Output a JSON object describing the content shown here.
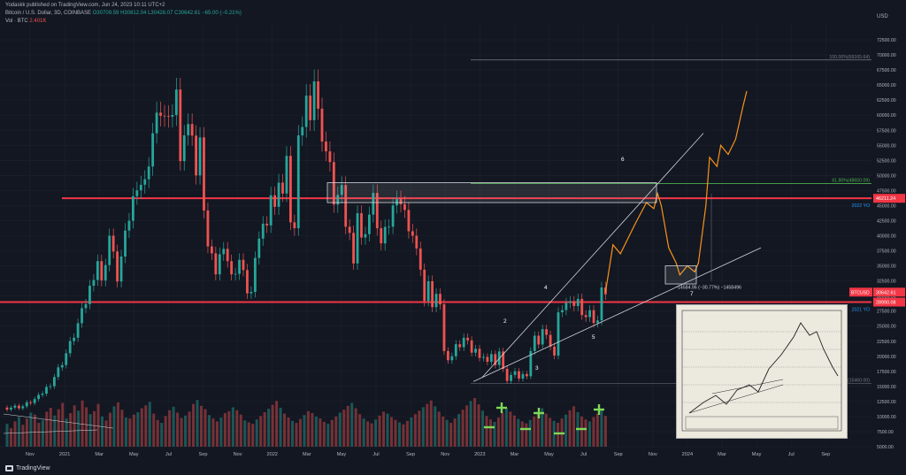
{
  "header": {
    "publisher": "Yodaskk published on TradingView.com, Jun 24, 2023 10:11 UTC+2",
    "symbol": "Bitcoin / U.S. Dollar, 3D, COINBASE",
    "ohlc": "O30709.59 H30812.04 L30426.07 C30642.61 −65.00 (−0.21%)",
    "vol_label": "Vol · BTC",
    "vol_value": "2.401K"
  },
  "branding": "TradingView",
  "chart_data": {
    "type": "candlestick",
    "currency_label": "USD",
    "x_tick_labels": [
      "Nov",
      "2021",
      "Mar",
      "May",
      "Jul",
      "Sep",
      "Nov",
      "2022",
      "Mar",
      "May",
      "Jul",
      "Sep",
      "Nov",
      "2023",
      "Mar",
      "May",
      "Jul",
      "Sep",
      "Nov",
      "2024",
      "Mar",
      "May",
      "Jul",
      "Sep"
    ],
    "y_tick_labels": [
      "72500.00",
      "70000.00",
      "67500.00",
      "65000.00",
      "62500.00",
      "60000.00",
      "57500.00",
      "55000.00",
      "52500.00",
      "50000.00",
      "47500.00",
      "45000.00",
      "42500.00",
      "40000.00",
      "37500.00",
      "35000.00",
      "32500.00",
      "30000.00",
      "27500.00",
      "25000.00",
      "22500.00",
      "20000.00",
      "17500.00",
      "15000.00",
      "12500.00",
      "10000.00",
      "7500.00",
      "5000.00"
    ],
    "ylim": [
      5000,
      75000
    ],
    "price_path": [
      [
        0,
        11500
      ],
      [
        4,
        11700
      ],
      [
        8,
        13200
      ],
      [
        11,
        15500
      ],
      [
        14,
        19000
      ],
      [
        17,
        23500
      ],
      [
        20,
        29000
      ],
      [
        23,
        36000
      ],
      [
        24,
        32000
      ],
      [
        26,
        40000
      ],
      [
        28,
        33000
      ],
      [
        31,
        43000
      ],
      [
        33,
        49000
      ],
      [
        35,
        48500
      ],
      [
        37,
        57000
      ],
      [
        39,
        61000
      ],
      [
        41,
        58000
      ],
      [
        43,
        63500
      ],
      [
        44,
        54000
      ],
      [
        45,
        57000
      ],
      [
        47,
        58000
      ],
      [
        48,
        50000
      ],
      [
        49,
        55000
      ],
      [
        50,
        45000
      ],
      [
        51,
        38000
      ],
      [
        53,
        34000
      ],
      [
        55,
        39000
      ],
      [
        57,
        33000
      ],
      [
        59,
        36000
      ],
      [
        61,
        31000
      ],
      [
        62,
        30500
      ],
      [
        64,
        40000
      ],
      [
        66,
        43000
      ],
      [
        67,
        47000
      ],
      [
        68,
        44000
      ],
      [
        69,
        50000
      ],
      [
        70,
        47000
      ],
      [
        71,
        52000
      ],
      [
        72,
        43000
      ],
      [
        73,
        41000
      ],
      [
        74,
        55000
      ],
      [
        76,
        62500
      ],
      [
        77,
        61000
      ],
      [
        78,
        66000
      ],
      [
        79,
        60000
      ],
      [
        80,
        57000
      ],
      [
        82,
        51000
      ],
      [
        83,
        46000
      ],
      [
        85,
        47000
      ],
      [
        86,
        42000
      ],
      [
        87,
        40000
      ],
      [
        88,
        36500
      ],
      [
        89,
        44000
      ],
      [
        90,
        39000
      ],
      [
        92,
        43500
      ],
      [
        93,
        46000
      ],
      [
        94,
        42000
      ],
      [
        95,
        38500
      ],
      [
        97,
        42000
      ],
      [
        98,
        44500
      ],
      [
        99,
        47500
      ],
      [
        101,
        43500
      ],
      [
        103,
        40000
      ],
      [
        104,
        37000
      ],
      [
        105,
        35000
      ],
      [
        106,
        29000
      ],
      [
        107,
        31500
      ],
      [
        108,
        28500
      ],
      [
        109,
        30000
      ],
      [
        110,
        29500
      ],
      [
        111,
        21000
      ],
      [
        112,
        19000
      ],
      [
        113,
        20500
      ],
      [
        114,
        22000
      ],
      [
        115,
        21000
      ],
      [
        116,
        23500
      ],
      [
        117,
        22500
      ],
      [
        118,
        20000
      ],
      [
        119,
        21500
      ],
      [
        120,
        19500
      ],
      [
        121,
        20500
      ],
      [
        122,
        19200
      ],
      [
        123,
        20000
      ],
      [
        124,
        19000
      ],
      [
        125,
        20800
      ],
      [
        126,
        17500
      ],
      [
        127,
        16200
      ],
      [
        128,
        16800
      ],
      [
        129,
        17000
      ],
      [
        130,
        16500
      ],
      [
        132,
        17200
      ],
      [
        133,
        21000
      ],
      [
        134,
        23000
      ],
      [
        135,
        22500
      ],
      [
        136,
        24500
      ],
      [
        137,
        23000
      ],
      [
        138,
        22000
      ],
      [
        139,
        20000
      ],
      [
        140,
        26500
      ],
      [
        141,
        28000
      ],
      [
        142,
        28500
      ],
      [
        143,
        30000
      ],
      [
        144,
        28500
      ],
      [
        145,
        29000
      ],
      [
        146,
        27500
      ],
      [
        147,
        26500
      ],
      [
        148,
        27000
      ],
      [
        149,
        26000
      ],
      [
        150,
        25800
      ],
      [
        151,
        30500
      ],
      [
        152,
        30642.61
      ]
    ],
    "price_labels": [
      {
        "text": "BTCUSD",
        "value": "30642.61",
        "extra": "2d 18h"
      },
      {
        "text": "",
        "value": "46211.24"
      },
      {
        "text": "",
        "value": "28990.08"
      }
    ],
    "level_labels": {
      "fib100": "100.00%(69165.64)",
      "fib618": "61.80%(48650.09)",
      "yo2022": "2022 YO",
      "yo2021": "2021 YO",
      "low_label": "(15460.00)",
      "measure": "−14584.96 (−30.77%) −1458496"
    },
    "horizontal_levels": {
      "yo2022": 46211.24,
      "yo2021": 28990.08,
      "fib100": 69165.64,
      "fib618": 48650.09
    },
    "projection_path": [
      [
        0,
        30642.61
      ],
      [
        2,
        38500
      ],
      [
        4,
        37000
      ],
      [
        6,
        39500
      ],
      [
        8,
        42000
      ],
      [
        11,
        45500
      ],
      [
        13,
        44500
      ],
      [
        14,
        47000
      ],
      [
        15,
        45000
      ],
      [
        17,
        38000
      ],
      [
        19,
        35500
      ],
      [
        20,
        33500
      ],
      [
        22,
        35000
      ],
      [
        24,
        34000
      ],
      [
        25,
        35500
      ],
      [
        27,
        45000
      ],
      [
        28,
        53000
      ],
      [
        30,
        51500
      ],
      [
        31,
        55000
      ],
      [
        33,
        53500
      ],
      [
        35,
        56000
      ],
      [
        37,
        61500
      ],
      [
        38,
        64000
      ]
    ],
    "wave_labels": [
      "2",
      "3",
      "4",
      "5",
      "6",
      "7"
    ],
    "volume_bars": [
      47,
      38,
      52,
      61,
      45,
      58,
      70,
      66,
      49,
      55,
      72,
      80,
      64,
      77,
      90,
      58,
      69,
      85,
      74,
      95,
      81,
      67,
      73,
      88,
      62,
      54,
      70,
      83,
      91,
      76,
      60,
      58,
      66,
      71,
      79,
      85,
      92,
      68,
      55,
      49,
      63,
      75,
      82,
      70,
      59,
      64,
      72,
      88,
      96,
      84,
      77,
      65,
      58,
      52,
      60,
      69,
      73,
      81,
      75,
      66,
      54,
      50,
      47,
      56,
      63,
      71,
      78,
      86,
      94,
      80,
      68,
      60,
      53,
      49,
      57,
      65,
      73,
      69,
      62,
      58,
      51,
      47,
      55,
      62,
      70,
      76,
      84,
      90,
      79,
      67,
      58,
      52,
      48,
      56,
      64,
      72,
      68,
      61,
      55,
      50,
      46,
      53,
      60,
      67,
      74,
      81,
      88,
      95,
      83,
      72,
      62,
      55,
      49,
      58,
      67,
      76,
      85,
      94,
      100,
      87,
      74,
      63,
      56,
      51,
      60,
      70,
      80,
      72,
      64,
      57,
      52,
      48,
      55,
      62,
      71,
      79,
      68,
      59,
      53,
      49,
      58,
      66,
      75,
      83,
      71,
      62,
      56,
      52,
      61,
      68,
      76,
      63
    ],
    "grid": true
  }
}
